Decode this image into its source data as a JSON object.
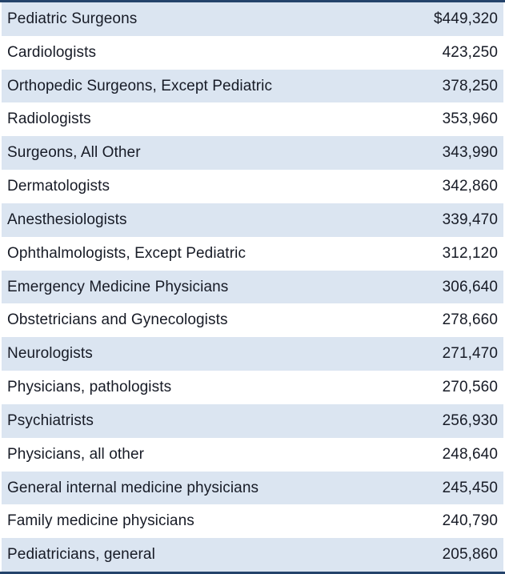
{
  "colors": {
    "border": "#24436B",
    "row_shaded": "#DBE5F1",
    "row_plain": "#FFFFFF",
    "text": "#171B26"
  },
  "table": {
    "rows": [
      {
        "occupation": "Pediatric Surgeons",
        "salary": "$449,320"
      },
      {
        "occupation": "Cardiologists",
        "salary": "423,250"
      },
      {
        "occupation": "Orthopedic Surgeons, Except Pediatric",
        "salary": "378,250"
      },
      {
        "occupation": "Radiologists",
        "salary": "353,960"
      },
      {
        "occupation": "Surgeons, All Other",
        "salary": "343,990"
      },
      {
        "occupation": "Dermatologists",
        "salary": "342,860"
      },
      {
        "occupation": "Anesthesiologists",
        "salary": "339,470"
      },
      {
        "occupation": "Ophthalmologists, Except Pediatric",
        "salary": "312,120"
      },
      {
        "occupation": "Emergency Medicine Physicians",
        "salary": "306,640"
      },
      {
        "occupation": "Obstetricians and Gynecologists",
        "salary": "278,660"
      },
      {
        "occupation": "Neurologists",
        "salary": "271,470"
      },
      {
        "occupation": "Physicians, pathologists",
        "salary": "270,560"
      },
      {
        "occupation": "Psychiatrists",
        "salary": "256,930"
      },
      {
        "occupation": "Physicians, all other",
        "salary": "248,640"
      },
      {
        "occupation": "General internal medicine physicians",
        "salary": "245,450"
      },
      {
        "occupation": "Family medicine physicians",
        "salary": "240,790"
      },
      {
        "occupation": "Pediatricians, general",
        "salary": "205,860"
      }
    ]
  },
  "chart_data": {
    "type": "table",
    "categories": [
      "Pediatric Surgeons",
      "Cardiologists",
      "Orthopedic Surgeons, Except Pediatric",
      "Radiologists",
      "Surgeons, All Other",
      "Dermatologists",
      "Anesthesiologists",
      "Ophthalmologists, Except Pediatric",
      "Emergency Medicine Physicians",
      "Obstetricians and Gynecologists",
      "Neurologists",
      "Physicians, pathologists",
      "Psychiatrists",
      "Physicians, all other",
      "General internal medicine physicians",
      "Family medicine physicians",
      "Pediatricians, general"
    ],
    "values": [
      449320,
      423250,
      378250,
      353960,
      343990,
      342860,
      339470,
      312120,
      306640,
      278660,
      271470,
      270560,
      256930,
      248640,
      245450,
      240790,
      205860
    ],
    "value_format": "first row shows leading $, values comma-separated",
    "layout": "two-column table, labels left-aligned, values right-aligned, alternating row shading starting shaded"
  }
}
